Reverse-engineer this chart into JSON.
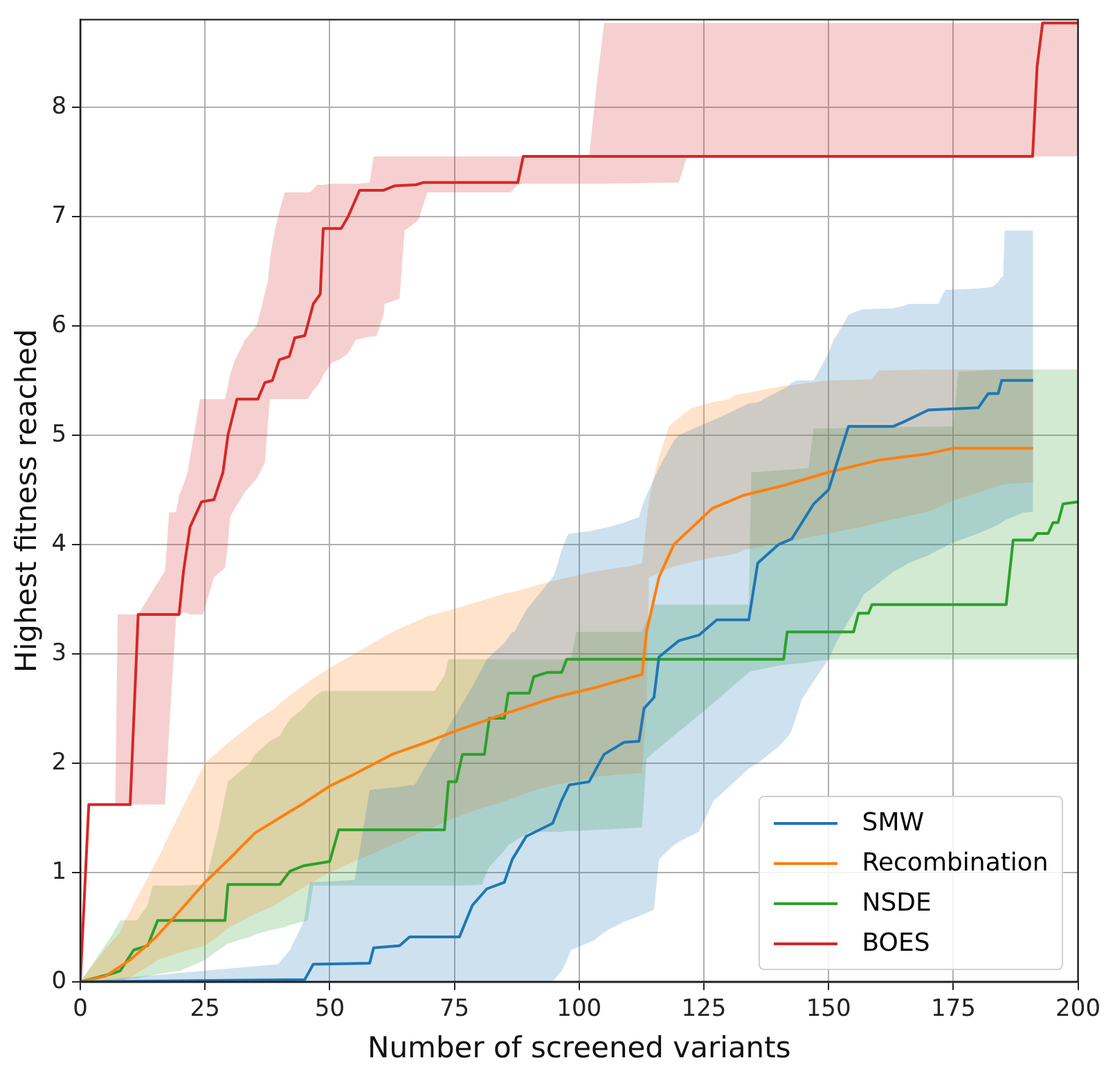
{
  "chart_data": {
    "type": "line",
    "xlabel": "Number of screened variants",
    "ylabel": "Highest fitness reached",
    "xlim": [
      0,
      200
    ],
    "ylim": [
      0,
      8.8
    ],
    "xticks": [
      0,
      25,
      50,
      75,
      100,
      125,
      150,
      175,
      200
    ],
    "yticks": [
      0,
      1,
      2,
      3,
      4,
      5,
      6,
      7,
      8
    ],
    "grid": true,
    "legend": "bottom right",
    "series": [
      {
        "name": "SMW",
        "color": "#1f77b4",
        "x": [
          0,
          39.6,
          42,
          44.7,
          45,
          46,
          46.7,
          55,
          58,
          58.8,
          64,
          66,
          67,
          76,
          78.6,
          81.5,
          85,
          86.6,
          87,
          89.4,
          94.7,
          95,
          96.5,
          97.6,
          98,
          98.4,
          102,
          103,
          105,
          106,
          109,
          112,
          113,
          113.5,
          115,
          116,
          119,
          120,
          124,
          127,
          127.6,
          134,
          135.8,
          140,
          142,
          142.6,
          143.7,
          144.6,
          147,
          150,
          151,
          151.5,
          154,
          156,
          157,
          163,
          165,
          166,
          170,
          172,
          173.4,
          174,
          180,
          182,
          183,
          184,
          184.7,
          185,
          185.3,
          189,
          191
        ],
        "values": [
          0,
          null,
          null,
          null,
          0.02,
          null,
          0.16,
          null,
          0.17,
          0.31,
          0.33,
          0.41,
          null,
          0.41,
          0.7,
          0.85,
          0.91,
          1.12,
          null,
          1.33,
          1.45,
          null,
          1.66,
          null,
          1.8,
          null,
          1.83,
          null,
          2.08,
          null,
          2.19,
          2.2,
          2.5,
          null,
          2.6,
          2.97,
          null,
          3.12,
          3.17,
          null,
          3.31,
          3.31,
          3.83,
          4.0,
          null,
          4.05,
          null,
          null,
          4.37,
          4.5,
          null,
          4.72,
          5.08,
          null,
          null,
          5.08,
          5.12,
          null,
          5.23,
          null,
          null,
          null,
          5.25,
          5.38,
          null,
          5.38,
          5.5,
          null,
          null,
          null,
          5.5
        ],
        "lower": [
          0,
          0,
          0,
          0,
          0,
          0,
          0,
          0,
          0,
          0,
          0,
          0,
          0,
          0,
          0,
          0,
          0,
          0,
          0,
          0,
          0,
          0.02,
          0.1,
          0.2,
          0.25,
          0.29,
          0.36,
          0.38,
          0.45,
          0.48,
          0.55,
          0.6,
          0.62,
          0.63,
          0.66,
          1.12,
          1.25,
          1.28,
          1.37,
          1.66,
          1.68,
          1.95,
          2.0,
          2.15,
          2.25,
          2.3,
          2.45,
          2.58,
          2.75,
          2.95,
          3.05,
          3.1,
          3.3,
          3.45,
          3.54,
          3.75,
          3.8,
          3.83,
          3.9,
          3.95,
          3.98,
          4.0,
          4.1,
          4.14,
          4.16,
          4.18,
          4.2,
          4.21,
          4.22,
          4.29,
          4.3
        ],
        "upper": [
          0,
          0.16,
          0.29,
          0.54,
          0.6,
          0.91,
          0.91,
          0.93,
          1.75,
          1.76,
          1.78,
          1.8,
          1.8,
          2.5,
          2.7,
          2.95,
          3.1,
          3.2,
          3.2,
          3.4,
          3.7,
          3.72,
          3.95,
          4.08,
          4.1,
          4.1,
          4.12,
          4.13,
          4.15,
          4.16,
          4.2,
          4.25,
          4.4,
          4.45,
          4.6,
          4.7,
          4.95,
          5.0,
          5.08,
          5.14,
          5.15,
          5.29,
          5.3,
          5.4,
          5.45,
          5.48,
          5.5,
          5.5,
          5.5,
          5.75,
          5.87,
          5.9,
          6.1,
          6.14,
          6.15,
          6.16,
          6.18,
          6.2,
          6.2,
          6.2,
          6.33,
          6.33,
          6.34,
          6.35,
          6.36,
          6.4,
          6.45,
          6.45,
          6.87,
          6.87,
          6.87
        ]
      },
      {
        "name": "Recombination",
        "color": "#ff7f0e",
        "x": [
          0,
          5,
          8,
          9,
          10,
          15,
          15.5,
          20,
          25,
          30,
          35,
          39,
          40,
          45,
          50,
          55,
          62.5,
          70,
          75,
          80,
          85,
          88,
          91,
          95,
          103,
          104,
          110,
          112.6,
          113.5,
          114,
          115,
          116,
          118,
          119,
          122.6,
          126.7,
          130,
          131.5,
          133,
          141,
          150,
          158.7,
          160,
          170,
          175,
          185,
          191
        ],
        "values": [
          0,
          0.05,
          null,
          null,
          0.2,
          0.4,
          null,
          0.65,
          0.91,
          1.13,
          1.36,
          null,
          1.5,
          1.64,
          1.79,
          1.9,
          2.08,
          2.2,
          2.29,
          2.37,
          2.45,
          null,
          2.54,
          2.6,
          null,
          2.7,
          2.78,
          2.81,
          3.2,
          null,
          null,
          3.7,
          null,
          4.0,
          null,
          4.33,
          null,
          null,
          4.45,
          4.54,
          4.66,
          null,
          4.77,
          4.83,
          4.88,
          null,
          4.88
        ],
        "lower": [
          0,
          0,
          0,
          0.02,
          0.04,
          0.18,
          0.2,
          0.27,
          0.33,
          0.5,
          0.62,
          0.7,
          0.73,
          0.87,
          1.0,
          1.1,
          1.25,
          1.4,
          1.5,
          1.58,
          1.65,
          1.7,
          1.75,
          1.8,
          1.87,
          1.88,
          1.9,
          1.91,
          2.5,
          3.7,
          3.72,
          3.74,
          3.78,
          3.8,
          3.84,
          3.88,
          3.9,
          3.92,
          3.95,
          4.02,
          4.1,
          4.18,
          4.2,
          4.3,
          4.4,
          4.55,
          4.57
        ],
        "upper": [
          0,
          0.3,
          0.45,
          0.57,
          0.65,
          1.08,
          1.12,
          1.55,
          2.0,
          2.2,
          2.38,
          2.5,
          2.55,
          2.72,
          2.87,
          3.0,
          3.2,
          3.35,
          3.41,
          3.48,
          3.55,
          3.58,
          3.62,
          3.67,
          3.75,
          3.76,
          3.8,
          3.83,
          4.2,
          4.4,
          4.62,
          4.8,
          5.08,
          5.12,
          5.25,
          5.3,
          5.33,
          5.37,
          5.38,
          5.45,
          5.5,
          5.51,
          5.59,
          5.6,
          5.6,
          5.6,
          5.6
        ]
      },
      {
        "name": "NSDE",
        "color": "#2ca02c",
        "x": [
          0,
          6,
          8,
          10.7,
          11.3,
          13.5,
          14.5,
          15.5,
          20,
          25,
          27.7,
          29,
          29.6,
          34,
          35,
          38,
          40,
          41,
          42,
          44.7,
          45.6,
          46.7,
          48.5,
          50,
          51.8,
          71,
          73,
          73.8,
          75.4,
          76.6,
          80.6,
          81,
          82,
          85,
          85.8,
          90,
          90.9,
          93.7,
          96.5,
          97.5,
          98.4,
          99.4,
          112.6,
          113.5,
          115,
          126.7,
          134,
          134.5,
          141,
          141.7,
          146,
          147,
          151,
          155,
          156,
          158,
          158.7,
          175,
          176,
          185.6,
          187,
          190.9,
          191.8,
          194,
          195,
          196,
          197,
          200
        ],
        "values": [
          0,
          0.07,
          0.1,
          0.29,
          null,
          0.33,
          null,
          0.56,
          null,
          null,
          null,
          0.56,
          0.89,
          null,
          null,
          null,
          0.89,
          null,
          1.01,
          1.06,
          null,
          null,
          null,
          1.1,
          1.39,
          null,
          1.39,
          1.83,
          1.83,
          2.08,
          null,
          2.08,
          2.41,
          2.41,
          2.64,
          2.64,
          2.79,
          2.83,
          2.83,
          2.95,
          null,
          null,
          null,
          null,
          null,
          null,
          null,
          null,
          2.95,
          3.2,
          null,
          null,
          null,
          3.2,
          3.37,
          3.37,
          3.45,
          null,
          null,
          3.45,
          4.04,
          4.04,
          4.1,
          4.1,
          4.2,
          4.2,
          4.37,
          4.39
        ],
        "lower": [
          0,
          0.01,
          0.02,
          0.03,
          0.03,
          0.05,
          0.06,
          0.07,
          0.1,
          0.2,
          0.29,
          0.33,
          0.35,
          0.41,
          0.43,
          0.47,
          0.49,
          0.5,
          0.52,
          0.55,
          0.56,
          0.88,
          0.88,
          0.88,
          0.88,
          0.88,
          0.88,
          0.88,
          0.88,
          0.88,
          0.89,
          0.95,
          1.05,
          1.2,
          1.25,
          1.37,
          1.37,
          1.37,
          1.37,
          1.38,
          1.38,
          1.38,
          1.41,
          2.04,
          2.1,
          2.54,
          2.83,
          2.84,
          2.9,
          2.9,
          2.92,
          2.93,
          2.95,
          2.95,
          2.95,
          2.95,
          2.95,
          2.95,
          2.95,
          2.95,
          2.95,
          2.95,
          2.95,
          2.95,
          2.95,
          2.95,
          2.95,
          2.95
        ],
        "upper": [
          0,
          0.4,
          0.56,
          0.56,
          0.56,
          0.7,
          0.88,
          0.88,
          0.88,
          0.89,
          1.4,
          1.7,
          1.83,
          2.0,
          2.08,
          2.2,
          2.25,
          2.33,
          2.4,
          2.5,
          2.55,
          2.6,
          2.66,
          2.66,
          2.66,
          2.66,
          2.8,
          2.95,
          2.95,
          2.95,
          2.95,
          2.95,
          2.95,
          2.95,
          2.95,
          2.95,
          2.95,
          2.95,
          2.95,
          2.95,
          2.95,
          3.2,
          3.2,
          3.3,
          3.45,
          3.45,
          3.45,
          4.66,
          4.68,
          4.68,
          4.7,
          5.06,
          5.06,
          5.07,
          5.07,
          5.07,
          5.07,
          5.08,
          5.58,
          5.6,
          5.6,
          5.6,
          5.6,
          5.6,
          5.6,
          5.6,
          5.6,
          5.6
        ]
      },
      {
        "name": "BOES",
        "color": "#d62728",
        "x": [
          0,
          1.7,
          7,
          7.5,
          10,
          11.6,
          17,
          17.8,
          19.2,
          19.8,
          20.7,
          21.5,
          22,
          24,
          24.3,
          24.6,
          26.8,
          28.6,
          29,
          29.6,
          30,
          31,
          31.4,
          33,
          35.3,
          35.6,
          37,
          37.6,
          38,
          38.5,
          39,
          39.9,
          41,
          41.9,
          43,
          45,
          45.6,
          46,
          46.7,
          47.5,
          48,
          48.1,
          48.7,
          50.4,
          52.3,
          53.7,
          55.2,
          56,
          58,
          58.8,
          59.4,
          60.8,
          61,
          63,
          64,
          65,
          67.3,
          67.9,
          68.7,
          69.6,
          86.3,
          87.7,
          88.8,
          102,
          103.5,
          105,
          120,
          121.6,
          190.9,
          191.8,
          192.9,
          200
        ],
        "values": [
          0,
          1.62,
          null,
          null,
          1.62,
          3.36,
          null,
          null,
          null,
          3.36,
          3.76,
          null,
          4.16,
          null,
          4.39,
          null,
          4.41,
          4.66,
          null,
          5.0,
          null,
          null,
          5.33,
          null,
          null,
          5.33,
          5.48,
          null,
          null,
          5.5,
          null,
          5.69,
          null,
          5.72,
          5.89,
          5.91,
          null,
          null,
          6.2,
          null,
          null,
          6.29,
          6.89,
          null,
          6.89,
          7.0,
          null,
          7.24,
          null,
          null,
          null,
          7.24,
          null,
          7.28,
          null,
          null,
          7.29,
          null,
          7.31,
          null,
          null,
          7.31,
          7.55,
          null,
          null,
          null,
          null,
          null,
          7.55,
          8.37,
          8.77,
          8.77
        ],
        "lower": [
          0,
          1.62,
          1.62,
          1.62,
          1.62,
          1.62,
          1.62,
          2.3,
          3.33,
          3.35,
          3.38,
          3.37,
          3.36,
          3.36,
          3.36,
          3.36,
          3.7,
          3.77,
          3.79,
          4.0,
          4.25,
          4.33,
          4.36,
          4.48,
          4.6,
          4.62,
          4.75,
          5.1,
          5.33,
          5.33,
          5.33,
          5.33,
          5.33,
          5.33,
          5.33,
          5.33,
          5.33,
          5.36,
          5.41,
          5.45,
          5.48,
          5.49,
          5.55,
          5.66,
          5.7,
          5.75,
          5.87,
          5.88,
          5.9,
          5.9,
          5.91,
          6.1,
          6.2,
          6.23,
          6.25,
          6.87,
          6.95,
          6.98,
          7.1,
          7.22,
          7.22,
          7.29,
          7.3,
          7.3,
          7.3,
          7.3,
          7.31,
          7.55,
          7.55,
          7.55,
          7.55,
          7.55
        ],
        "upper": [
          0,
          1.62,
          1.62,
          3.36,
          3.36,
          3.36,
          3.76,
          4.29,
          4.3,
          4.45,
          4.55,
          4.66,
          4.8,
          5.33,
          5.33,
          5.33,
          5.33,
          5.33,
          5.33,
          5.45,
          5.55,
          5.69,
          5.72,
          5.87,
          6.0,
          6.04,
          6.3,
          6.41,
          6.6,
          6.75,
          6.87,
          7.05,
          7.22,
          7.22,
          7.22,
          7.22,
          7.22,
          7.22,
          7.25,
          7.29,
          7.29,
          7.29,
          7.29,
          7.3,
          7.3,
          7.3,
          7.3,
          7.3,
          7.31,
          7.55,
          7.55,
          7.55,
          7.55,
          7.55,
          7.55,
          7.55,
          7.55,
          7.55,
          7.55,
          7.55,
          7.55,
          7.55,
          7.55,
          7.55,
          8.2,
          8.77,
          8.77,
          8.77,
          8.77,
          8.77,
          8.77,
          8.77
        ]
      }
    ]
  }
}
